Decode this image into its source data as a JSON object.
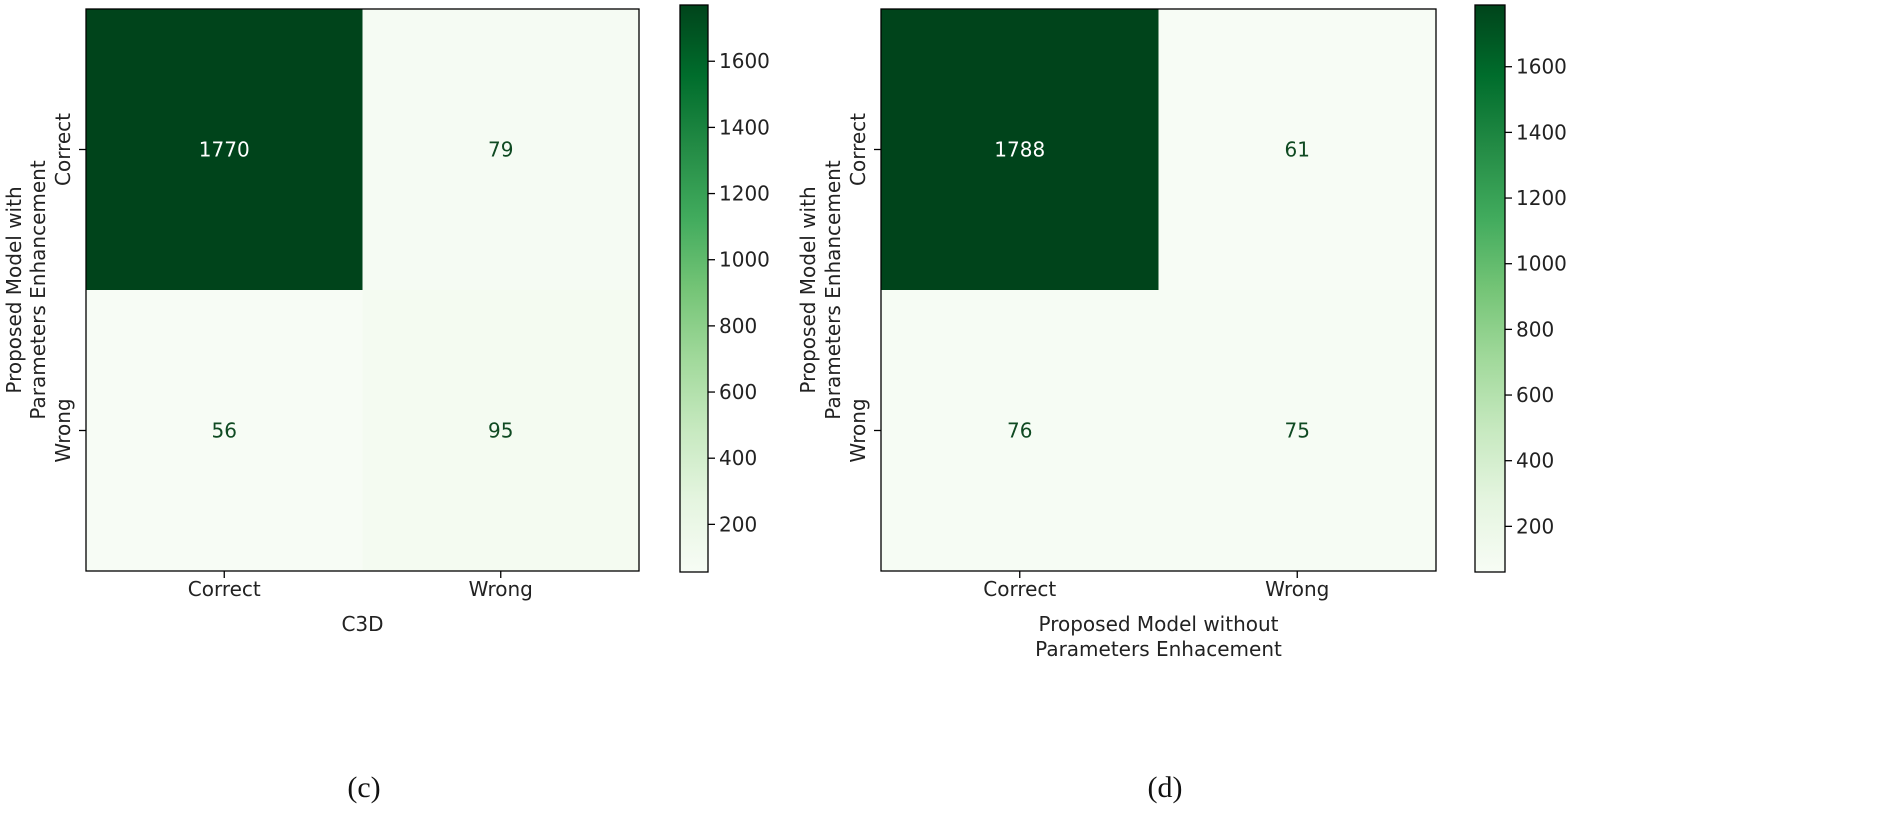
{
  "chart_data": [
    {
      "type": "heatmap",
      "caption": "(c)",
      "row_categories": [
        "Correct",
        "Wrong"
      ],
      "col_categories": [
        "Correct",
        "Wrong"
      ],
      "values": [
        [
          1770,
          79
        ],
        [
          56,
          95
        ]
      ],
      "xlabel": [
        "C3D"
      ],
      "ylabel": [
        "Proposed Model with",
        "Parameters Enhancement"
      ],
      "colorbar": {
        "ticks": [
          200,
          400,
          600,
          800,
          1000,
          1200,
          1400,
          1600
        ],
        "range": [
          56,
          1770
        ]
      },
      "colormap": "Greens"
    },
    {
      "type": "heatmap",
      "caption": "(d)",
      "row_categories": [
        "Correct",
        "Wrong"
      ],
      "col_categories": [
        "Correct",
        "Wrong"
      ],
      "values": [
        [
          1788,
          61
        ],
        [
          76,
          75
        ]
      ],
      "xlabel": [
        "Proposed Model without",
        "Parameters Enhacement"
      ],
      "ylabel": [
        "Proposed Model with",
        "Parameters Enhancement"
      ],
      "colorbar": {
        "ticks": [
          200,
          400,
          600,
          800,
          1000,
          1200,
          1400,
          1600
        ],
        "range": [
          61,
          1788
        ]
      },
      "colormap": "Greens"
    }
  ]
}
